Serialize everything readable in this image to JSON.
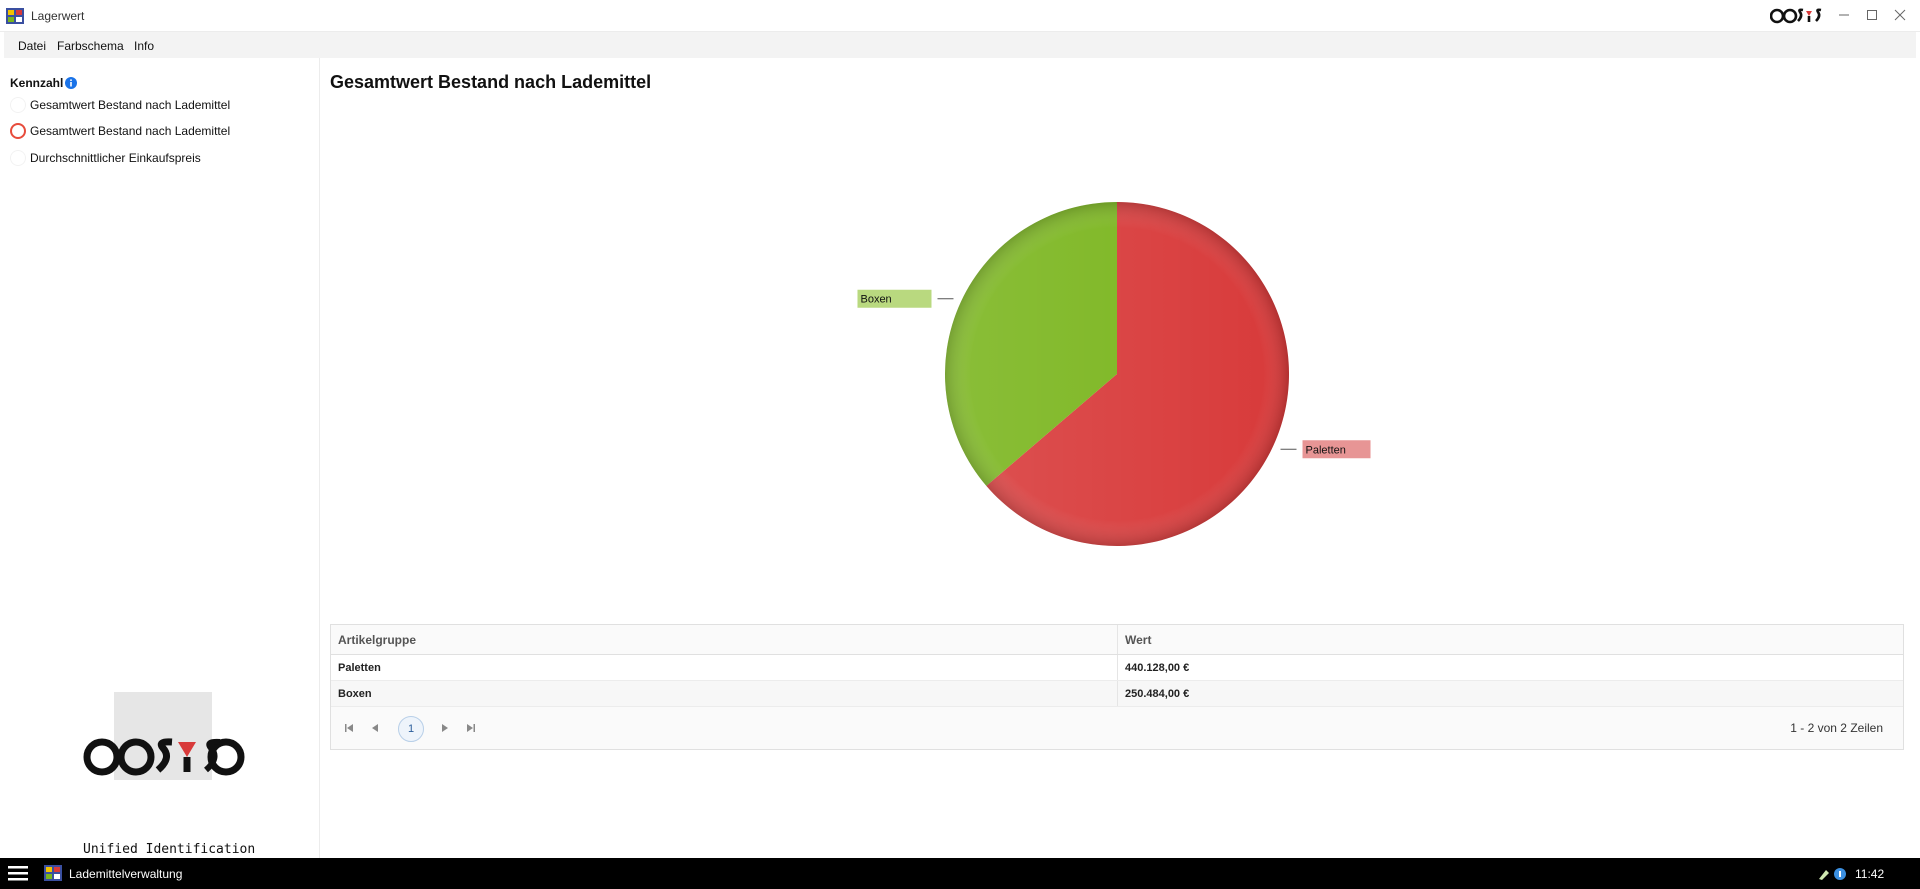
{
  "window": {
    "title": "Lagerwert",
    "app_icon": "storage-app-icon",
    "brand": "cosys"
  },
  "menu": {
    "items": [
      "Datei",
      "Farbschema",
      "Info"
    ]
  },
  "sidebar": {
    "label": "Kennzahl",
    "info_icon": "info-icon",
    "options": [
      {
        "label": "Gesamtwert Bestand nach Lademittel",
        "selected": false
      },
      {
        "label": "Gesamtwert Bestand nach Lademittel",
        "selected": true
      },
      {
        "label": "Durchschnittlicher Einkaufspreis",
        "selected": false
      }
    ],
    "logo_caption": "Unified Identification"
  },
  "main": {
    "title": "Gesamtwert Bestand nach Lademittel"
  },
  "chart_data": {
    "type": "pie",
    "title": "Gesamtwert Bestand nach Lademittel",
    "categories": [
      "Paletten",
      "Boxen"
    ],
    "values": [
      440128.0,
      250484.0
    ],
    "colors": [
      "#d83a3a",
      "#7ab51d"
    ],
    "label_colors": [
      "#e79595",
      "#b9d97f"
    ]
  },
  "table": {
    "columns": [
      "Artikelgruppe",
      "Wert"
    ],
    "rows": [
      [
        "Paletten",
        "440.128,00 €"
      ],
      [
        "Boxen",
        "250.484,00 €"
      ]
    ],
    "current_page": "1",
    "info": "1 - 2 von 2 Zeilen"
  },
  "taskbar": {
    "app_label": "Lademittelverwaltung",
    "time": "11:42"
  }
}
